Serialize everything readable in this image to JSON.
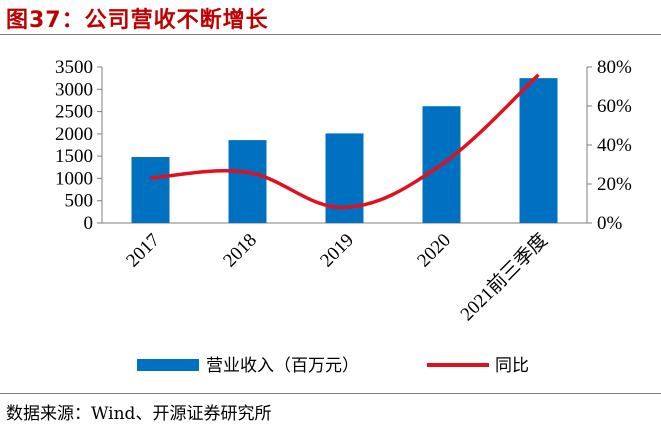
{
  "figure": {
    "title": "图37：公司营收不断增长",
    "source": "数据来源：Wind、开源证券研究所"
  },
  "colors": {
    "bar": "#0070c0",
    "line": "#e0101e",
    "title": "#c00000"
  },
  "chart_data": {
    "type": "bar",
    "categories": [
      "2017",
      "2018",
      "2019",
      "2020",
      "2021前三季度"
    ],
    "series": [
      {
        "name": "营业收入（百万元）",
        "type": "bar",
        "axis": "left",
        "values": [
          1480,
          1860,
          2010,
          2620,
          3250
        ]
      },
      {
        "name": "同比",
        "type": "line",
        "axis": "right",
        "values": [
          23,
          26,
          8,
          30,
          76
        ]
      }
    ],
    "y_left": {
      "min": 0,
      "max": 3500,
      "ticks": [
        "0",
        "500",
        "1000",
        "1500",
        "2000",
        "2500",
        "3000",
        "3500"
      ]
    },
    "y_right": {
      "min": 0,
      "max": 80,
      "ticks": [
        "0%",
        "20%",
        "40%",
        "60%",
        "80%"
      ]
    },
    "grid": false,
    "legend_position": "bottom"
  }
}
